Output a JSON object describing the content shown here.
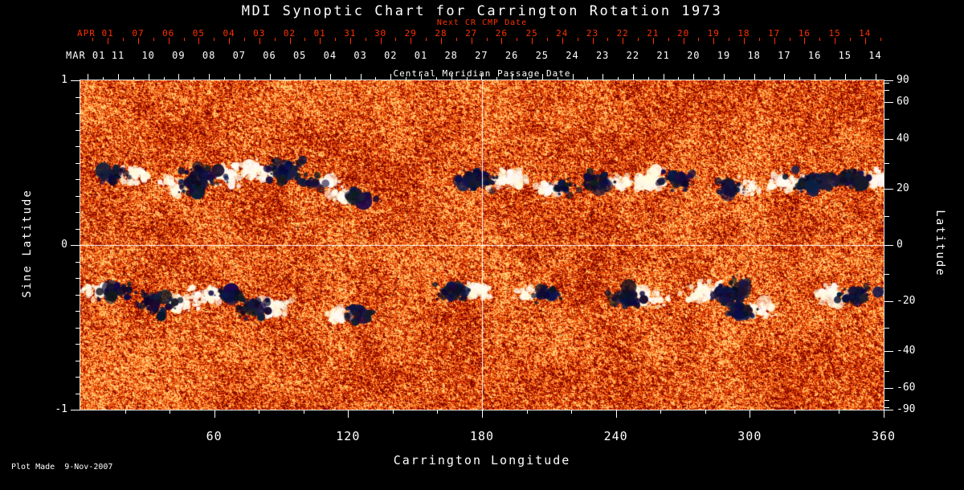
{
  "title": "MDI Synoptic Chart for Carrington Rotation 1973",
  "footer": {
    "plot_made": "Plot Made  9-Nov-2007"
  },
  "colors": {
    "background": "#000000",
    "axis_red": "#ff3000",
    "axis_white": "#ffffff"
  },
  "axes": {
    "next_cr": {
      "label": "Next CR CMP Date",
      "month_label": "APR 01",
      "ticks": [
        "07",
        "06",
        "05",
        "04",
        "03",
        "02",
        "01",
        "31",
        "30",
        "29",
        "28",
        "27",
        "26",
        "25",
        "24",
        "23",
        "22",
        "21",
        "20",
        "19",
        "18",
        "17",
        "16",
        "15",
        "14"
      ]
    },
    "cmp": {
      "label": "Central Meridian Passage Date",
      "month_label": "MAR 01",
      "ticks": [
        "11",
        "10",
        "09",
        "08",
        "07",
        "06",
        "05",
        "04",
        "03",
        "02",
        "01",
        "28",
        "27",
        "26",
        "25",
        "24",
        "23",
        "22",
        "21",
        "20",
        "19",
        "18",
        "17",
        "16",
        "15",
        "14"
      ]
    },
    "x": {
      "label": "Carrington Longitude",
      "ticks": [
        "60",
        "120",
        "180",
        "240",
        "300",
        "360"
      ]
    },
    "left": {
      "label": "Sine Latitude",
      "ticks": [
        "1",
        "0",
        "-1"
      ]
    },
    "right": {
      "label": "Latitude",
      "ticks": [
        "90",
        "60",
        "40",
        "20",
        "0",
        "-20",
        "-40",
        "-60",
        "-90"
      ]
    }
  },
  "chart_data": {
    "type": "heatmap",
    "title": "MDI Synoptic Chart for Carrington Rotation 1973",
    "xlabel": "Carrington Longitude",
    "xlim": [
      0,
      360
    ],
    "xticks": [
      60,
      120,
      180,
      240,
      300,
      360
    ],
    "ylabel_left": "Sine Latitude",
    "yticks_left": [
      1,
      0,
      -1
    ],
    "ylim_sine": [
      -1,
      1
    ],
    "ylabel_right": "Latitude",
    "yticks_right": [
      90,
      60,
      40,
      20,
      0,
      -20,
      -40,
      -60,
      -90
    ],
    "top_axis_red_label": "Next CR CMP Date",
    "top_axis_red_dates": [
      "APR 01",
      "07",
      "06",
      "05",
      "04",
      "03",
      "02",
      "01",
      "31",
      "30",
      "29",
      "28",
      "27",
      "26",
      "25",
      "24",
      "23",
      "22",
      "21",
      "20",
      "19",
      "18",
      "17",
      "16",
      "15",
      "14"
    ],
    "top_axis_white_label": "Central Meridian Passage Date",
    "top_axis_white_dates": [
      "MAR 01",
      "11",
      "10",
      "09",
      "08",
      "07",
      "06",
      "05",
      "04",
      "03",
      "02",
      "01",
      "28",
      "27",
      "26",
      "25",
      "24",
      "23",
      "22",
      "21",
      "20",
      "19",
      "18",
      "17",
      "16",
      "15",
      "14"
    ],
    "colormap": "red-orange solar magnetogram; dark navy/black = negative magnetic polarity, white/cream = positive polarity",
    "crosshair": {
      "longitude": 180,
      "sine_latitude": 0
    },
    "active_regions": [
      {
        "lon": 20,
        "sine_lat": 0.42,
        "strength": 0.55
      },
      {
        "lon": 46,
        "sine_lat": 0.36,
        "strength": 0.5
      },
      {
        "lon": 60,
        "sine_lat": 0.42,
        "strength": 0.9
      },
      {
        "lon": 85,
        "sine_lat": 0.45,
        "strength": 1.0
      },
      {
        "lon": 108,
        "sine_lat": 0.38,
        "strength": 0.4
      },
      {
        "lon": 120,
        "sine_lat": 0.3,
        "strength": 0.5
      },
      {
        "lon": 185,
        "sine_lat": 0.4,
        "strength": 1.0
      },
      {
        "lon": 212,
        "sine_lat": 0.35,
        "strength": 0.4
      },
      {
        "lon": 237,
        "sine_lat": 0.38,
        "strength": 0.65
      },
      {
        "lon": 262,
        "sine_lat": 0.4,
        "strength": 0.8
      },
      {
        "lon": 295,
        "sine_lat": 0.35,
        "strength": 0.5
      },
      {
        "lon": 322,
        "sine_lat": 0.38,
        "strength": 0.9
      },
      {
        "lon": 350,
        "sine_lat": 0.4,
        "strength": 0.85
      },
      {
        "lon": 12,
        "sine_lat": -0.28,
        "strength": 0.6
      },
      {
        "lon": 40,
        "sine_lat": -0.35,
        "strength": 0.9
      },
      {
        "lon": 62,
        "sine_lat": -0.3,
        "strength": 0.5
      },
      {
        "lon": 82,
        "sine_lat": -0.38,
        "strength": 0.6
      },
      {
        "lon": 120,
        "sine_lat": -0.42,
        "strength": 0.5
      },
      {
        "lon": 172,
        "sine_lat": -0.28,
        "strength": 0.85
      },
      {
        "lon": 205,
        "sine_lat": -0.3,
        "strength": 0.4
      },
      {
        "lon": 250,
        "sine_lat": -0.32,
        "strength": 0.8
      },
      {
        "lon": 286,
        "sine_lat": -0.28,
        "strength": 0.9
      },
      {
        "lon": 300,
        "sine_lat": -0.4,
        "strength": 0.6
      },
      {
        "lon": 342,
        "sine_lat": -0.3,
        "strength": 0.7
      }
    ]
  }
}
